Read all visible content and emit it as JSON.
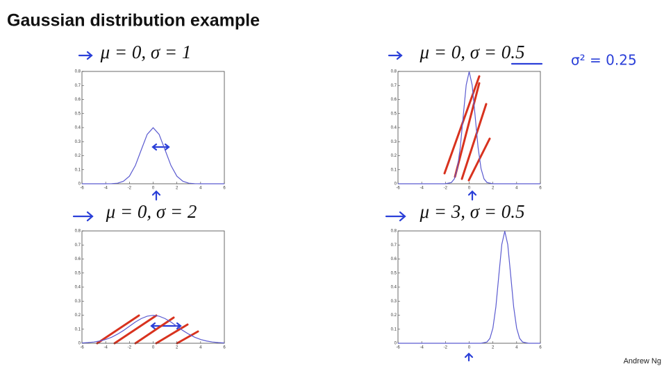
{
  "title": "Gaussian distribution example",
  "annotation": "σ² = 0.25",
  "credit": "Andrew Ng",
  "chart_data": [
    {
      "type": "line",
      "title": "μ = 0, σ = 1",
      "x": [
        -6,
        -5.5,
        -5,
        -4.5,
        -4,
        -3.5,
        -3,
        -2.5,
        -2,
        -1.5,
        -1,
        -0.5,
        0,
        0.5,
        1,
        1.5,
        2,
        2.5,
        3,
        3.5,
        4,
        4.5,
        5,
        5.5,
        6
      ],
      "values": [
        0,
        0,
        0,
        0,
        0,
        0.001,
        0.004,
        0.018,
        0.054,
        0.13,
        0.242,
        0.352,
        0.399,
        0.352,
        0.242,
        0.13,
        0.054,
        0.018,
        0.004,
        0.001,
        0,
        0,
        0,
        0,
        0
      ],
      "color": "#5a5ad0",
      "xlim": [
        -6,
        6
      ],
      "ylim": [
        0,
        0.8
      ],
      "xticks": [
        -6,
        -4,
        -2,
        0,
        2,
        4,
        6
      ],
      "yticks": [
        0,
        0.1,
        0.2,
        0.3,
        0.4,
        0.5,
        0.6,
        0.7,
        0.8
      ]
    },
    {
      "type": "line",
      "title": "μ = 0, σ = 0.5",
      "x": [
        -6,
        -4,
        -2,
        -1.5,
        -1.25,
        -1,
        -0.75,
        -0.5,
        -0.25,
        0,
        0.25,
        0.5,
        0.75,
        1,
        1.25,
        1.5,
        2,
        4,
        6
      ],
      "values": [
        0,
        0,
        0,
        0.009,
        0.035,
        0.108,
        0.259,
        0.484,
        0.704,
        0.798,
        0.704,
        0.484,
        0.259,
        0.108,
        0.035,
        0.009,
        0,
        0,
        0
      ],
      "color": "#5a5ad0",
      "xlim": [
        -6,
        6
      ],
      "ylim": [
        0,
        0.8
      ],
      "xticks": [
        -6,
        -4,
        -2,
        0,
        2,
        4,
        6
      ],
      "yticks": [
        0,
        0.1,
        0.2,
        0.3,
        0.4,
        0.5,
        0.6,
        0.7,
        0.8
      ]
    },
    {
      "type": "line",
      "title": "μ = 0, σ = 2",
      "x": [
        -6,
        -5.5,
        -5,
        -4.5,
        -4,
        -3.5,
        -3,
        -2.5,
        -2,
        -1.5,
        -1,
        -0.5,
        0,
        0.5,
        1,
        1.5,
        2,
        2.5,
        3,
        3.5,
        4,
        4.5,
        5,
        5.5,
        6
      ],
      "values": [
        0.002,
        0.005,
        0.009,
        0.016,
        0.027,
        0.043,
        0.065,
        0.091,
        0.121,
        0.151,
        0.176,
        0.193,
        0.199,
        0.193,
        0.176,
        0.151,
        0.121,
        0.091,
        0.065,
        0.043,
        0.027,
        0.016,
        0.009,
        0.005,
        0.002
      ],
      "color": "#5a5ad0",
      "xlim": [
        -6,
        6
      ],
      "ylim": [
        0,
        0.8
      ],
      "xticks": [
        -6,
        -4,
        -2,
        0,
        2,
        4,
        6
      ],
      "yticks": [
        0,
        0.1,
        0.2,
        0.3,
        0.4,
        0.5,
        0.6,
        0.7,
        0.8
      ]
    },
    {
      "type": "line",
      "title": "μ = 3, σ = 0.5",
      "x": [
        -6,
        -2,
        0,
        1,
        1.5,
        1.75,
        2,
        2.25,
        2.5,
        2.75,
        3,
        3.25,
        3.5,
        3.75,
        4,
        4.25,
        4.5,
        5,
        6
      ],
      "values": [
        0,
        0,
        0,
        0,
        0.009,
        0.035,
        0.108,
        0.259,
        0.484,
        0.704,
        0.798,
        0.704,
        0.484,
        0.259,
        0.108,
        0.035,
        0.009,
        0,
        0
      ],
      "color": "#5a5ad0",
      "xlim": [
        -6,
        6
      ],
      "ylim": [
        0,
        0.8
      ],
      "xticks": [
        -6,
        -4,
        -2,
        0,
        2,
        4,
        6
      ],
      "yticks": [
        0,
        0.1,
        0.2,
        0.3,
        0.4,
        0.5,
        0.6,
        0.7,
        0.8
      ]
    }
  ]
}
